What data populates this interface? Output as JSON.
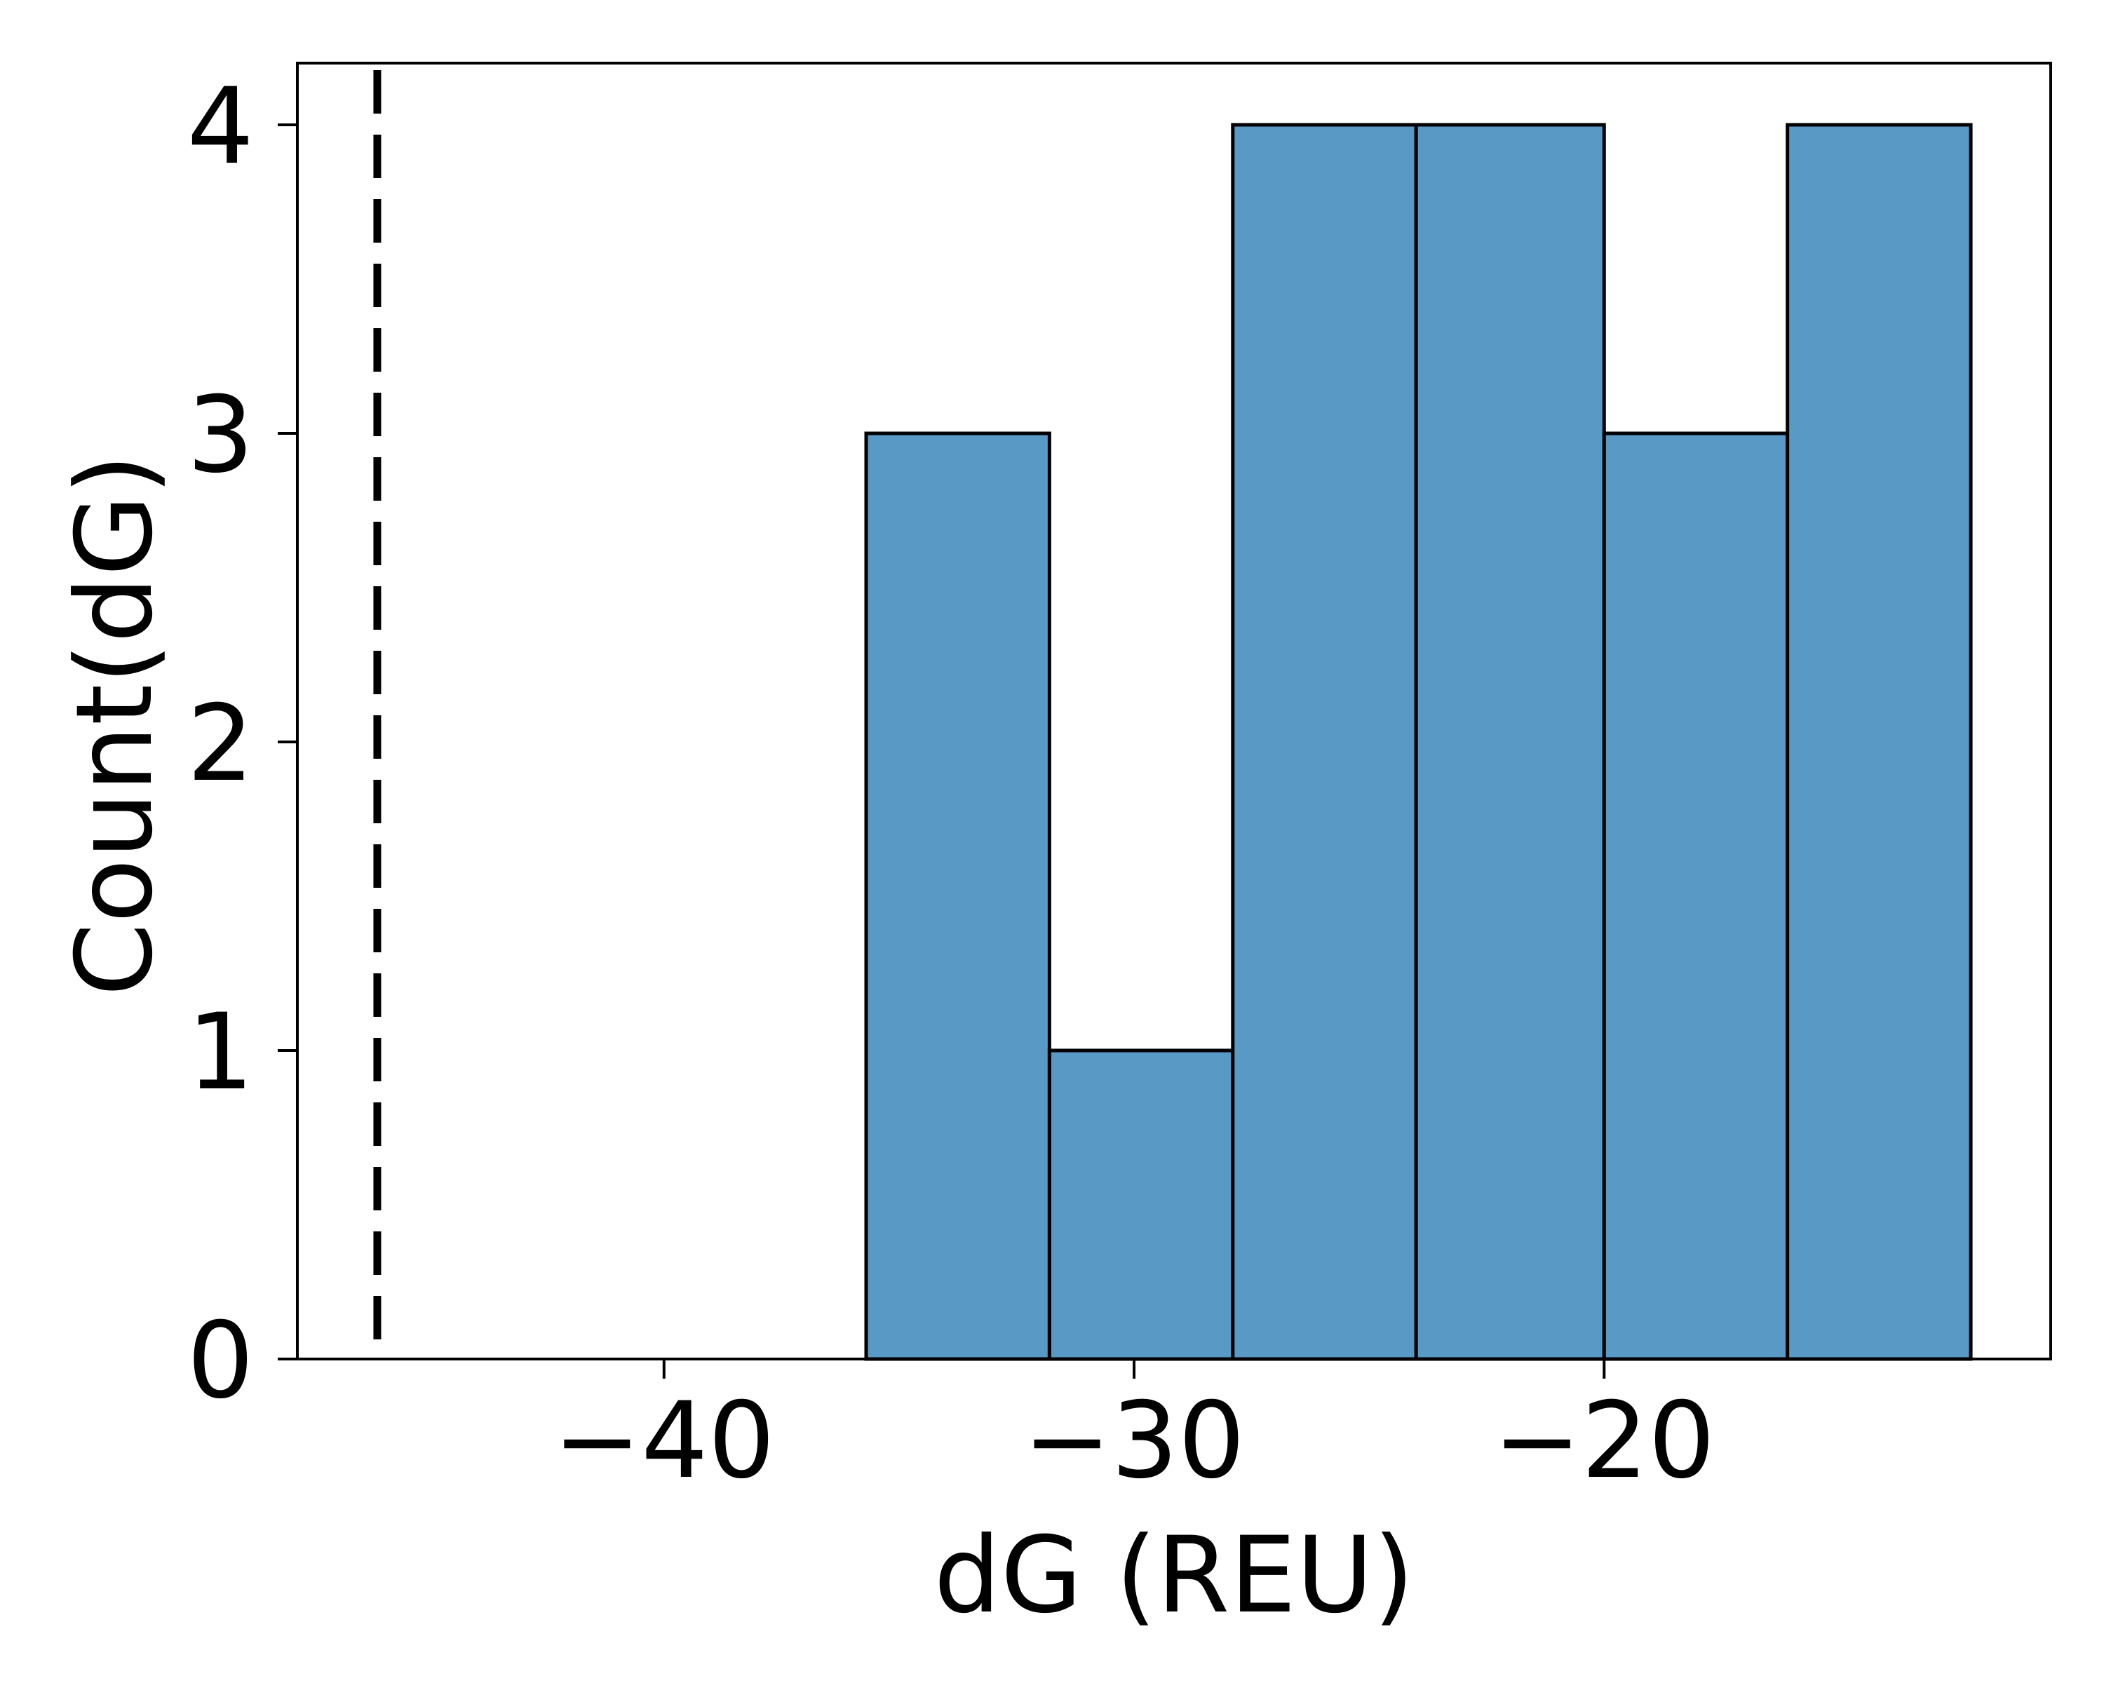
{
  "chart_data": {
    "type": "bar",
    "xlabel": "dG (REU)",
    "ylabel": "Count(dG)",
    "xlim": [
      -47.8,
      -10.5
    ],
    "ylim": [
      0,
      4.2
    ],
    "x_ticks": [
      -40,
      -30,
      -20
    ],
    "x_tick_labels": [
      "−40",
      "−30",
      "−20"
    ],
    "y_ticks": [
      0,
      1,
      2,
      3,
      4
    ],
    "y_tick_labels": [
      "0",
      "1",
      "2",
      "3",
      "4"
    ],
    "bins": [
      {
        "start": -35.7,
        "end": -31.8,
        "count": 3
      },
      {
        "start": -31.8,
        "end": -27.9,
        "count": 1
      },
      {
        "start": -27.9,
        "end": -24.0,
        "count": 4
      },
      {
        "start": -24.0,
        "end": -20.0,
        "count": 4
      },
      {
        "start": -20.0,
        "end": -16.1,
        "count": 3
      },
      {
        "start": -16.1,
        "end": -12.2,
        "count": 4
      }
    ],
    "reference_line": {
      "x": -46.1,
      "style": "dashed"
    },
    "bar_color": "#5899c6",
    "edge_color": "#000000",
    "grid": false,
    "legend": "none"
  }
}
